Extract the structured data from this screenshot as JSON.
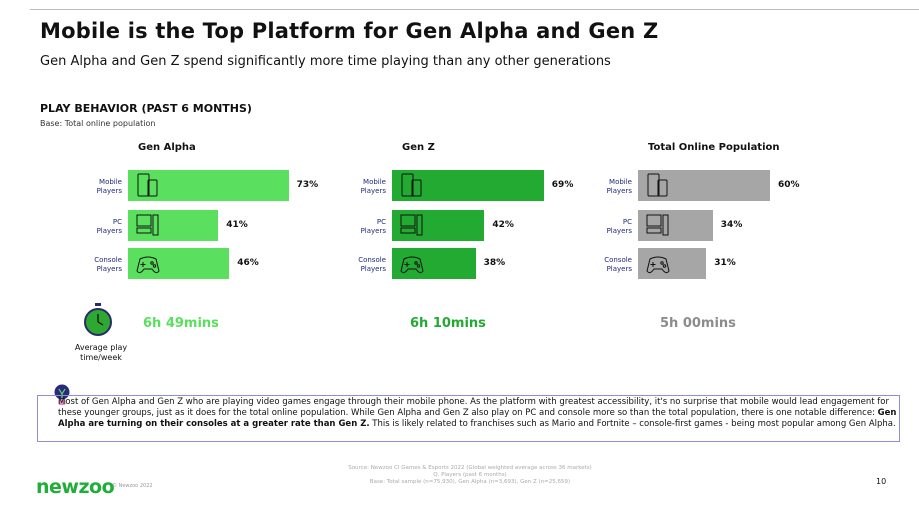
{
  "title": "Mobile is the Top Platform for Gen Alpha and Gen Z",
  "subtitle": "Gen Alpha and Gen Z spend significantly more time playing than any other generations",
  "section": "PLAY BEHAVIOR (PAST 6 MONTHS)",
  "base": "Base: Total online population",
  "chart_data": {
    "type": "bar",
    "orientation": "horizontal",
    "categories": [
      "Mobile Players",
      "PC Players",
      "Console Players"
    ],
    "icons": [
      "mobile-devices-icon",
      "pc-icon",
      "gamepad-icon"
    ],
    "series": [
      {
        "name": "Gen Alpha",
        "values": [
          73,
          41,
          46
        ],
        "labels": [
          "73%",
          "41%",
          "46%"
        ],
        "color": "#5ae05e",
        "time": "6h 49mins",
        "time_color": "#5ae05e"
      },
      {
        "name": "Gen Z",
        "values": [
          69,
          42,
          38
        ],
        "labels": [
          "69%",
          "42%",
          "38%"
        ],
        "color": "#22aa33",
        "time": "6h 10mins",
        "time_color": "#22aa33"
      },
      {
        "name": "Total Online Population",
        "values": [
          60,
          34,
          31
        ],
        "labels": [
          "60%",
          "34%",
          "31%"
        ],
        "color": "#a6a6a6",
        "time": "5h 00mins",
        "time_color": "#8c8c8c"
      }
    ],
    "unit": "%",
    "grid": false
  },
  "avg_label": "Average play time/week",
  "insight": {
    "pre": "Most of Gen Alpha and Gen Z who are playing video games engage through their mobile phone. As the platform with greatest accessibility, it's no surprise that mobile would lead engagement for these younger groups, just as it does for the total online population. While Gen Alpha and Gen Z also play on PC and console more so than the total population, there is one notable difference: ",
    "bold": "Gen Alpha are turning on their consoles at a greater rate than Gen Z.",
    "post": " This is likely related to franchises such as Mario and Fortnite – console-first games - being most popular among Gen Alpha."
  },
  "footer": {
    "logo": "newzoo",
    "copyright": "© Newzoo 2022",
    "source": [
      "Source: Newzoo CI Games & Esports 2022 (Global weighted average across 36 markets)",
      "Q. Players (past 6 months)",
      "Base: Total sample (n=75,930), Gen Alpha (n=3,693), Gen Z (n=25,659)"
    ],
    "page": "10"
  }
}
